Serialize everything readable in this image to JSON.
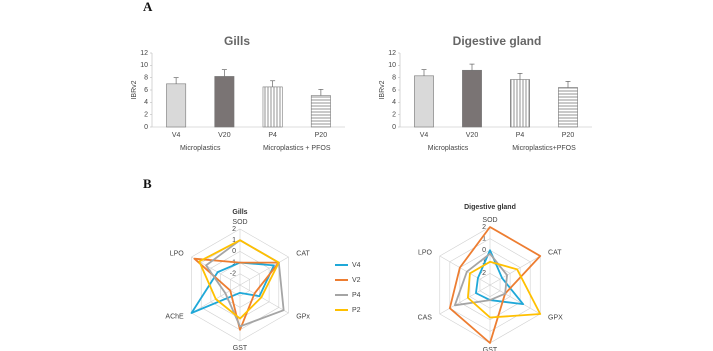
{
  "panel_labels": [
    "A",
    "B"
  ],
  "chart_data": [
    {
      "type": "bar",
      "title": "Gills",
      "y_label": "IBRv2",
      "categories": [
        "V4",
        "V20",
        "P4",
        "P20"
      ],
      "group_labels": [
        "Microplastics",
        "Microplastics + PFOS"
      ],
      "values": [
        7.0,
        8.2,
        6.5,
        5.1
      ],
      "errors": [
        1.0,
        1.1,
        1.0,
        1.0
      ],
      "colors": [
        "#d9d9d9",
        "#7a7474",
        "#ffffff",
        "#ffffff"
      ],
      "patterns": [
        "solid",
        "solid",
        "vertical",
        "horizontal"
      ],
      "ylim": [
        0,
        12
      ],
      "yticks": [
        0,
        2,
        4,
        6,
        8,
        10,
        12
      ]
    },
    {
      "type": "bar",
      "title": "Digestive gland",
      "y_label": "IBRv2",
      "categories": [
        "V4",
        "V20",
        "P4",
        "P20"
      ],
      "group_labels": [
        "Microplastics",
        "Microplastics+PFOS"
      ],
      "values": [
        8.3,
        9.2,
        7.7,
        6.4
      ],
      "errors": [
        1.0,
        1.0,
        1.0,
        1.0
      ],
      "colors": [
        "#d9d9d9",
        "#7a7474",
        "#ffffff",
        "#ffffff"
      ],
      "patterns": [
        "solid",
        "solid",
        "vertical",
        "horizontal"
      ],
      "ylim": [
        0,
        12
      ],
      "yticks": [
        0,
        2,
        4,
        6,
        8,
        10,
        12
      ]
    },
    {
      "type": "radar",
      "title": "Gills",
      "legend": true,
      "categories": [
        "SOD",
        "CAT",
        "GPx",
        "GST",
        "AChE",
        "LPO"
      ],
      "rlim": [
        -3,
        2
      ],
      "rticks": [
        -2,
        -1,
        0,
        1,
        2
      ],
      "series": [
        {
          "name": "V4",
          "color": "#1fa8d8",
          "values": [
            -1,
            0.5,
            -1,
            -2.3,
            2,
            -0.7
          ]
        },
        {
          "name": "V2",
          "color": "#ed7d31",
          "values": [
            -1,
            1,
            -1.5,
            1,
            -2,
            1.7
          ]
        },
        {
          "name": "P4",
          "color": "#a5a5a5",
          "values": [
            1,
            1,
            1.5,
            0.7,
            -1.5,
            0.5
          ]
        },
        {
          "name": "P2",
          "color": "#ffc000",
          "values": [
            1,
            1,
            -0.8,
            0,
            -0.5,
            1.2
          ]
        }
      ]
    },
    {
      "type": "radar",
      "title": "Digestive gland",
      "legend": false,
      "categories": [
        "SOD",
        "CAT",
        "GPX",
        "GST",
        "CAS",
        "LPO"
      ],
      "rlim": [
        -3,
        2
      ],
      "rticks": [
        -2,
        -1,
        0,
        1,
        2
      ],
      "series": [
        {
          "color": "#1fa8d8",
          "values": [
            0,
            -1.8,
            0.3,
            -1.7,
            -1.6,
            -1.8
          ]
        },
        {
          "color": "#ed7d31",
          "values": [
            2,
            2,
            -1.5,
            2,
            1,
            0
          ]
        },
        {
          "color": "#a5a5a5",
          "values": [
            -0.3,
            -1.3,
            -1.5,
            -1.7,
            0.5,
            -0.7
          ]
        },
        {
          "color": "#ffc000",
          "values": [
            -1,
            -0.3,
            2,
            -0.2,
            -0.8,
            -1
          ]
        }
      ]
    }
  ]
}
